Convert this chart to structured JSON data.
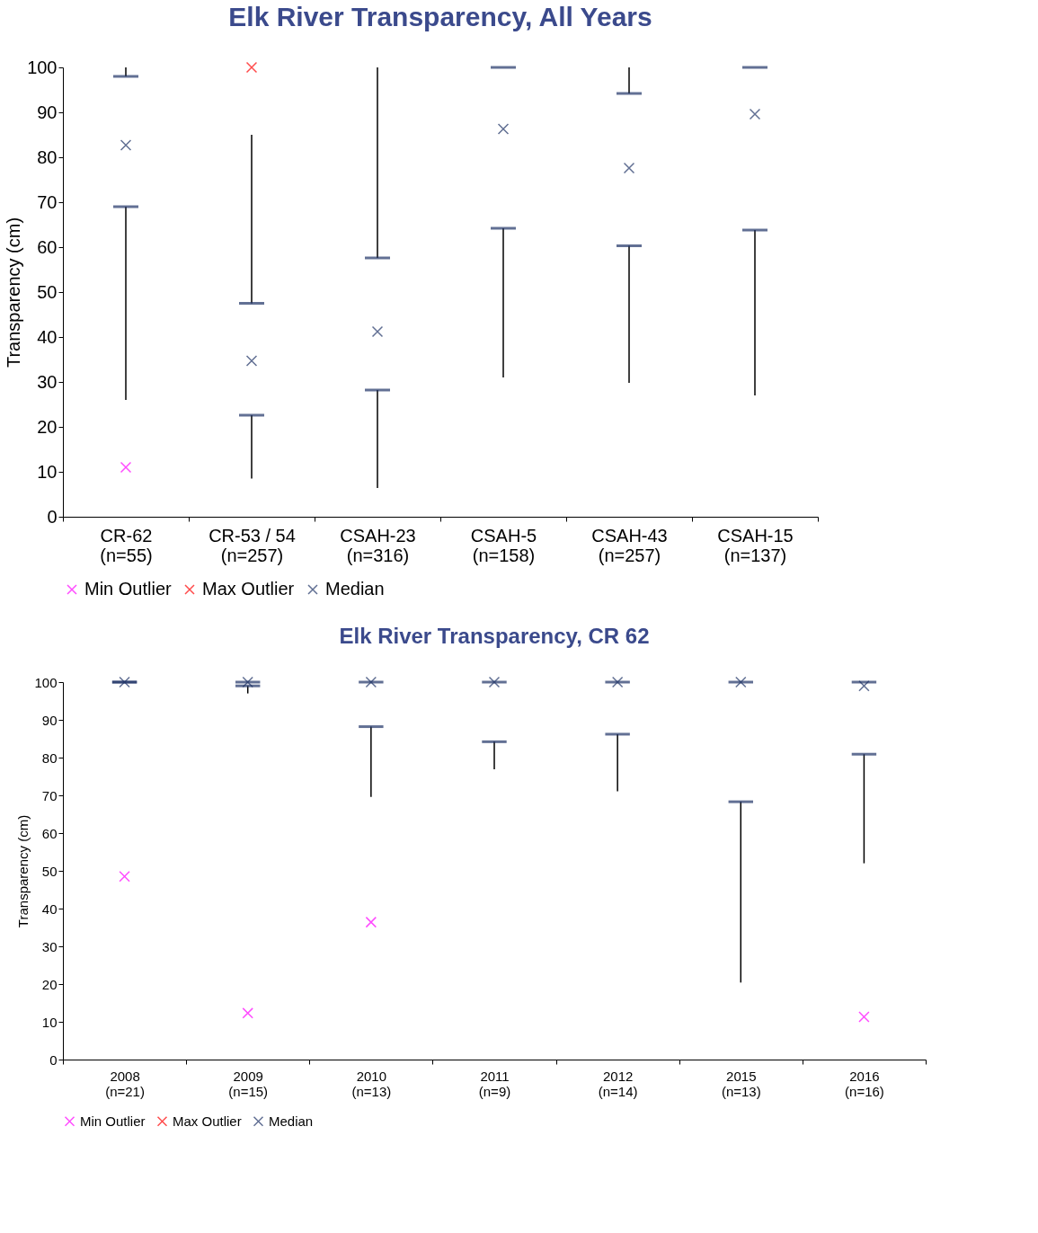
{
  "chart_data": [
    {
      "type": "box",
      "title": "Elk River Transparency, All Years",
      "ylabel": "Transparency (cm)",
      "categories": [
        "CR-62\n(n=55)",
        "CR-53 / 54\n(n=257)",
        "CSAH-23\n(n=316)",
        "CSAH-5\n(n=158)",
        "CSAH-43\n(n=257)",
        "CSAH-15\n(n=137)"
      ],
      "ylim": [
        0,
        100
      ],
      "yticks": [
        0,
        10,
        20,
        30,
        40,
        50,
        60,
        70,
        80,
        90,
        100
      ],
      "grid": false,
      "legend": "bottom",
      "series": [
        {
          "type": "box",
          "color": "#1f3366",
          "boxes": [
            {
              "low": 26,
              "q1": 69,
              "q3": 98,
              "high": 100
            },
            {
              "low": 8.5,
              "q1": 22.6,
              "q3": 47.5,
              "high": 85
            },
            {
              "low": 6.4,
              "q1": 28.2,
              "q3": 57.6,
              "high": 100
            },
            {
              "low": 31,
              "q1": 64.2,
              "q3": 100,
              "high": 100
            },
            {
              "low": 29.8,
              "q1": 60.3,
              "q3": 94.2,
              "high": 100
            },
            {
              "low": 27,
              "q1": 63.8,
              "q3": 100,
              "high": 100
            }
          ]
        },
        {
          "type": "scatter",
          "name": "Min Outlier",
          "color": "#ff00ff",
          "marker": "cross",
          "values": [
            11,
            null,
            null,
            null,
            null,
            null
          ]
        },
        {
          "type": "scatter",
          "name": "Max Outlier",
          "color": "#ff0000",
          "marker": "cross",
          "values": [
            null,
            100,
            null,
            null,
            null,
            null
          ]
        },
        {
          "type": "scatter",
          "name": "Median",
          "color": "#1f3366",
          "marker": "cross",
          "values": [
            82.7,
            34.7,
            41.2,
            86.3,
            77.6,
            89.6
          ]
        }
      ]
    },
    {
      "type": "box",
      "title": "Elk River Transparency, CR 62",
      "ylabel": "Transparency (cm)",
      "categories": [
        "2008\n(n=21)",
        "2009\n(n=15)",
        "2010\n(n=13)",
        "2011\n(n=9)",
        "2012\n(n=14)",
        "2015\n(n=13)",
        "2016\n(n=16)"
      ],
      "ylim": [
        0,
        100
      ],
      "yticks": [
        0,
        10,
        20,
        30,
        40,
        50,
        60,
        70,
        80,
        90,
        100
      ],
      "grid": false,
      "legend": "bottom",
      "series": [
        {
          "type": "box",
          "color": "#1f3366",
          "boxes": [
            {
              "low": 100,
              "q1": 100,
              "q3": 100,
              "high": 100
            },
            {
              "low": 97,
              "q1": 99,
              "q3": 100,
              "high": 100
            },
            {
              "low": 69.6,
              "q1": 88.2,
              "q3": 100,
              "high": 100
            },
            {
              "low": 76.9,
              "q1": 84.2,
              "q3": 100,
              "high": 100
            },
            {
              "low": 71.1,
              "q1": 86.2,
              "q3": 100,
              "high": 100
            },
            {
              "low": 20.4,
              "q1": 68.3,
              "q3": 100,
              "high": 100
            },
            {
              "low": 52,
              "q1": 80.9,
              "q3": 100,
              "high": 100
            }
          ]
        },
        {
          "type": "scatter",
          "name": "Min Outlier",
          "color": "#ff00ff",
          "marker": "cross",
          "values": [
            48.5,
            12.3,
            36.4,
            null,
            null,
            null,
            11.3
          ]
        },
        {
          "type": "scatter",
          "name": "Max Outlier",
          "color": "#ff0000",
          "marker": "cross",
          "values": [
            null,
            null,
            null,
            null,
            null,
            null,
            null
          ]
        },
        {
          "type": "scatter",
          "name": "Median",
          "color": "#1f3366",
          "marker": "cross",
          "values": [
            100,
            100,
            100,
            100,
            100,
            100,
            99
          ]
        }
      ]
    }
  ]
}
